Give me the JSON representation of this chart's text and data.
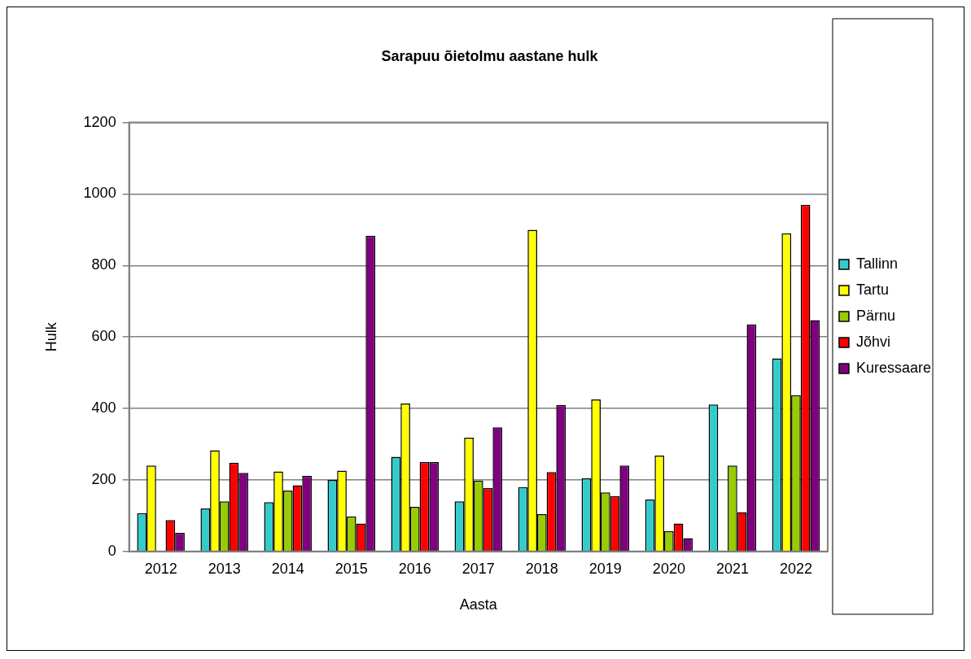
{
  "chart_data": {
    "type": "bar",
    "title": "Sarapuu õietolmu aastane hulk",
    "xlabel": "Aasta",
    "ylabel": "Hulk",
    "categories": [
      "2012",
      "2013",
      "2014",
      "2015",
      "2016",
      "2017",
      "2018",
      "2019",
      "2020",
      "2021",
      "2022"
    ],
    "series": [
      {
        "name": "Tallinn",
        "color": "#33cccc",
        "values": [
          107,
          120,
          138,
          200,
          265,
          140,
          180,
          205,
          145,
          411,
          540
        ]
      },
      {
        "name": "Tartu",
        "color": "#ffff00",
        "values": [
          240,
          283,
          224,
          226,
          414,
          318,
          900,
          425,
          268,
          null,
          890
        ]
      },
      {
        "name": "Pärnu",
        "color": "#99cc00",
        "values": [
          null,
          140,
          170,
          98,
          125,
          198,
          104,
          165,
          57,
          240,
          437
        ]
      },
      {
        "name": "Jõhvi",
        "color": "#ff0000",
        "values": [
          88,
          248,
          185,
          78,
          250,
          177,
          222,
          155,
          78,
          110,
          970
        ]
      },
      {
        "name": "Kuressaare",
        "color": "#800080",
        "values": [
          52,
          220,
          212,
          883,
          250,
          347,
          410,
          240,
          37,
          635,
          647
        ]
      }
    ],
    "ylim": [
      0,
      1200
    ],
    "yticks": [
      0,
      200,
      400,
      600,
      800,
      1000,
      1200
    ],
    "grid": "y",
    "legend": "right"
  }
}
